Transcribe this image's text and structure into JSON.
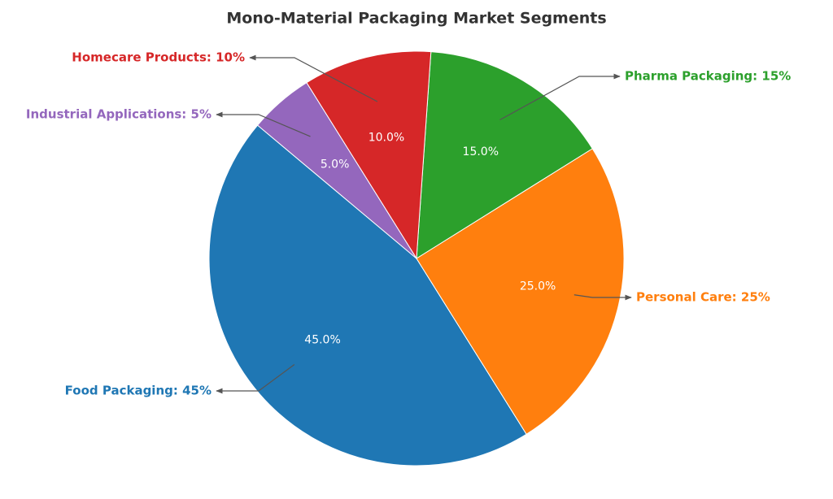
{
  "chart_data": {
    "type": "pie",
    "title": "Mono-Material Packaging Market Segments",
    "categories": [
      "Food Packaging",
      "Personal Care",
      "Pharma Packaging",
      "Homecare Products",
      "Industrial Applications"
    ],
    "values": [
      45,
      25,
      15,
      10,
      5
    ],
    "value_labels": [
      "45.0%",
      "25.0%",
      "15.0%",
      "10.0%",
      "5.0%"
    ],
    "annotations": [
      "Food Packaging: 45%",
      "Personal Care: 25%",
      "Pharma Packaging: 15%",
      "Homecare Products: 10%",
      "Industrial Applications: 5%"
    ],
    "colors": [
      "#1f77b4",
      "#ff7f0e",
      "#2ca02c",
      "#d62728",
      "#9467bd"
    ],
    "start_angle": 140,
    "direction": "counterclockwise"
  }
}
